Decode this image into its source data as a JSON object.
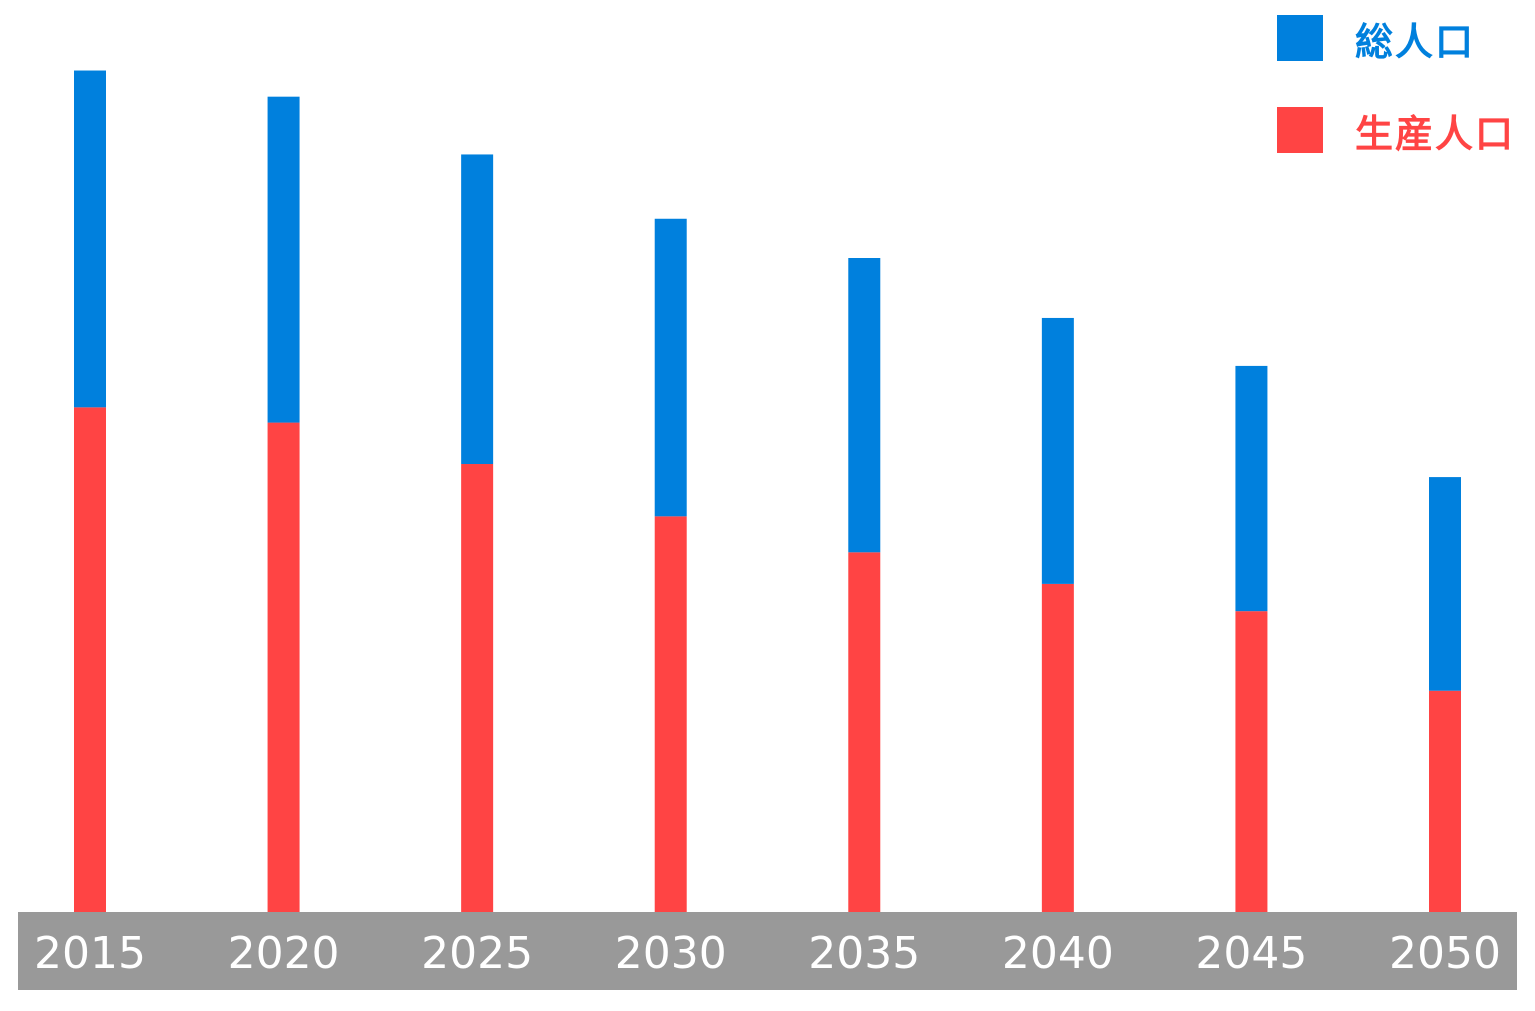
{
  "chart_data": {
    "type": "bar",
    "stacked": true,
    "categories": [
      "2015",
      "2020",
      "2025",
      "2030",
      "2035",
      "2040",
      "2045",
      "2050"
    ],
    "series": [
      {
        "name": "生産人口",
        "color": "#ff4444",
        "values": [
          463,
          449,
          411,
          363,
          330,
          301,
          276,
          203
        ]
      },
      {
        "name": "総人口",
        "color": "#0080dd",
        "values": [
          309,
          299,
          284,
          273,
          270,
          244,
          225,
          196
        ]
      }
    ],
    "ylim": [
      0,
      800
    ],
    "axis_band_color": "#999999",
    "tick_label_color": "#ffffff",
    "grid": false,
    "legend_position": "top-right",
    "legend_order": [
      "総人口",
      "生産人口"
    ]
  }
}
